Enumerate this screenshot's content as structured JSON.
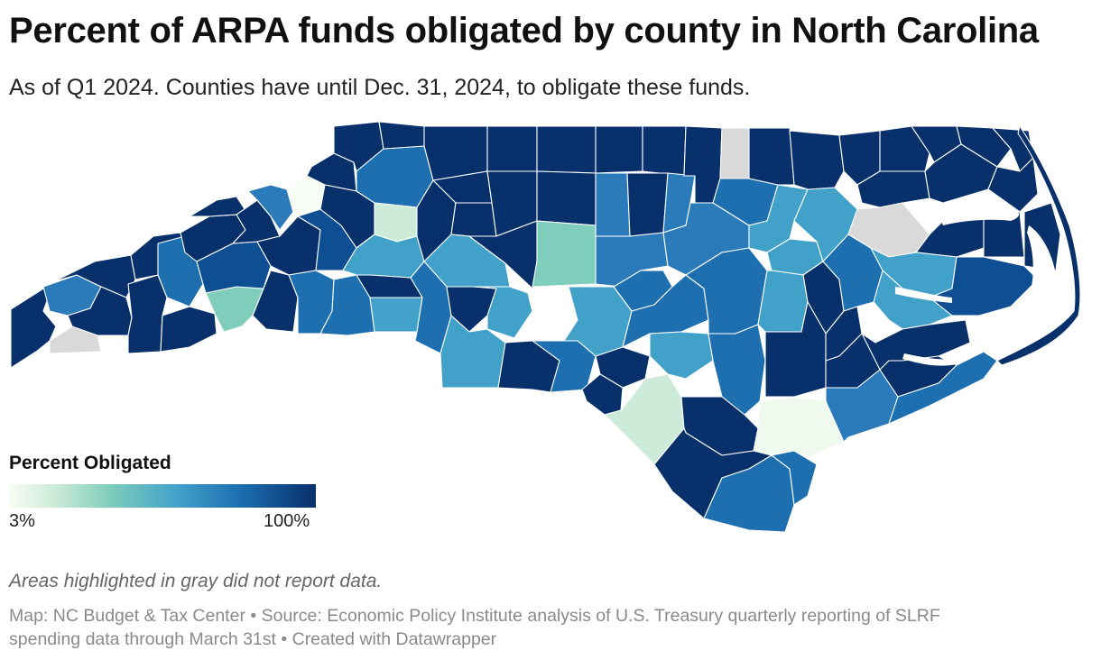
{
  "header": {
    "title": "Percent of ARPA funds obligated by county in North Carolina",
    "subtitle": "As of Q1 2024. Counties have until Dec. 31, 2024, to obligate these funds."
  },
  "legend": {
    "title": "Percent Obligated",
    "min_label": "3%",
    "max_label": "100%",
    "min_value": 3,
    "max_value": 100,
    "colors": [
      "#f7fcf5",
      "#cdebd9",
      "#7fcdbb",
      "#41a1c9",
      "#1d6fb0",
      "#08306b"
    ],
    "no_data_color": "#d9d9d9"
  },
  "notes": {
    "gray_note": "Areas highlighted in gray did not report data."
  },
  "footer": {
    "source_line1": "Map: NC Budget & Tax Center • Source: Economic Policy Institute analysis of U.S. Treasury quarterly reporting of SLRF",
    "source_line2": "spending data through March 31st • Created with Datawrapper"
  }
}
